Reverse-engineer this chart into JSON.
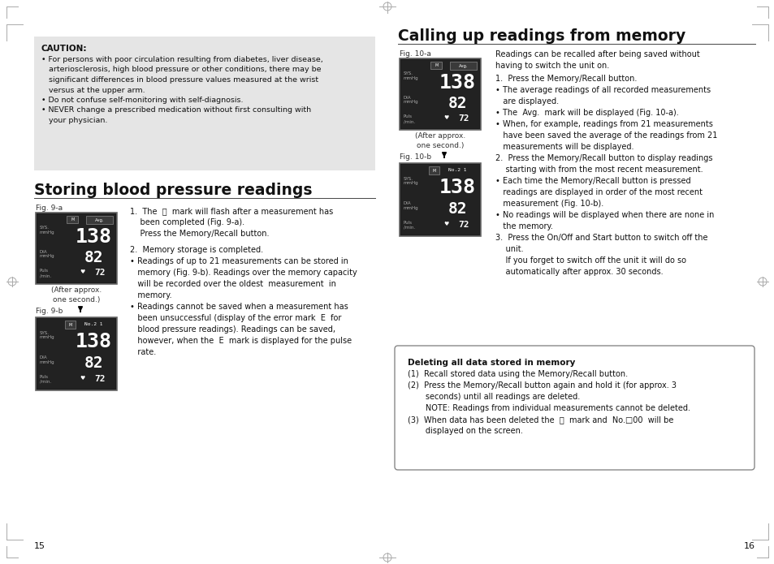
{
  "page_bg": "#ffffff",
  "left_page_num": "15",
  "right_page_num": "16",
  "caution_box_bg": "#e8e8e8",
  "caution_title": "CAUTION:",
  "storing_title": "Storing blood pressure readings",
  "calling_title": "Calling up readings from memory",
  "delete_title": "Deleting all data stored in memory"
}
